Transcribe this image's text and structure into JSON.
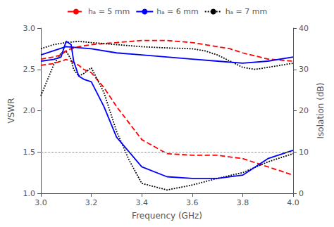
{
  "chart_data": {
    "type": "line",
    "xlabel": "Frequency (GHz)",
    "ylabel": "VSWR",
    "y2label": "Isolation (dB)",
    "xlim": [
      3.0,
      4.0
    ],
    "xticks": [
      {
        "value": 3.0,
        "label": "3.0"
      },
      3.2,
      3.4,
      3.6,
      3.8,
      {
        "value": 4.0,
        "label": "4.0"
      }
    ],
    "ylim": [
      1.0,
      3.0
    ],
    "yticks": [
      {
        "value": 1.0,
        "label": "1.0"
      },
      1.5,
      {
        "value": 2.0,
        "label": "2.0"
      },
      2.5,
      {
        "value": 3.0,
        "label": "3.0"
      }
    ],
    "y2lim": [
      0,
      40
    ],
    "y2ticks": [
      0,
      10,
      20,
      30,
      40
    ],
    "grid": false,
    "legend": "top",
    "hline_y": 1.5,
    "series": [
      {
        "name": "hₐ = 5 mm",
        "color": "red",
        "line_style": "dashed",
        "x": [
          3.0,
          3.05,
          3.08,
          3.1,
          3.12,
          3.15,
          3.17,
          3.2,
          3.25,
          3.3,
          3.4,
          3.5,
          3.6,
          3.7,
          3.8,
          3.9,
          4.0
        ],
        "values": [
          2.55,
          2.57,
          2.6,
          2.62,
          2.6,
          2.55,
          2.5,
          2.46,
          2.28,
          2.05,
          1.65,
          1.48,
          1.46,
          1.46,
          1.42,
          1.32,
          1.22
        ]
      },
      {
        "name": "hₐ = 6 mm",
        "color": "blue",
        "line_style": "solid",
        "x": [
          3.0,
          3.05,
          3.08,
          3.1,
          3.12,
          3.13,
          3.15,
          3.17,
          3.2,
          3.25,
          3.3,
          3.4,
          3.5,
          3.6,
          3.65,
          3.7,
          3.8,
          3.9,
          4.0
        ],
        "values": [
          2.6,
          2.62,
          2.65,
          2.84,
          2.8,
          2.6,
          2.42,
          2.38,
          2.35,
          2.05,
          1.68,
          1.32,
          1.2,
          1.18,
          1.18,
          1.18,
          1.22,
          1.42,
          1.52
        ]
      },
      {
        "name": "hₐ = 7 mm",
        "color": "black",
        "line_style": "dotted",
        "x": [
          3.0,
          3.05,
          3.08,
          3.1,
          3.12,
          3.13,
          3.15,
          3.17,
          3.2,
          3.25,
          3.3,
          3.35,
          3.4,
          3.5,
          3.6,
          3.7,
          3.8,
          3.9,
          4.0
        ],
        "values": [
          2.18,
          2.55,
          2.7,
          2.72,
          2.62,
          2.5,
          2.42,
          2.45,
          2.52,
          2.22,
          1.75,
          1.4,
          1.12,
          1.04,
          1.1,
          1.18,
          1.25,
          1.38,
          1.48
        ]
      },
      {
        "axis": "y2",
        "color": "red",
        "line_style": "dashed",
        "x": [
          3.0,
          3.05,
          3.08,
          3.1,
          3.12,
          3.15,
          3.2,
          3.3,
          3.4,
          3.5,
          3.6,
          3.7,
          3.75,
          3.8,
          3.9,
          4.0
        ],
        "values": [
          32.5,
          33.0,
          33.5,
          34.5,
          35.0,
          35.5,
          36.0,
          36.5,
          37.0,
          37.0,
          36.5,
          35.5,
          35.0,
          34.0,
          32.5,
          32.0
        ]
      },
      {
        "axis": "y2",
        "color": "blue",
        "line_style": "solid",
        "x": [
          3.0,
          3.1,
          3.2,
          3.3,
          3.4,
          3.5,
          3.6,
          3.7,
          3.8,
          3.9,
          4.0
        ],
        "values": [
          33.5,
          35.5,
          35.0,
          34.0,
          33.5,
          33.0,
          32.5,
          32.0,
          31.5,
          32.0,
          33.0
        ]
      },
      {
        "axis": "y2",
        "color": "black",
        "line_style": "dotted",
        "x": [
          3.0,
          3.05,
          3.1,
          3.15,
          3.2,
          3.3,
          3.4,
          3.5,
          3.6,
          3.65,
          3.7,
          3.75,
          3.8,
          3.85,
          3.9,
          4.0
        ],
        "values": [
          35.0,
          36.0,
          36.5,
          36.8,
          36.5,
          36.0,
          35.5,
          35.2,
          35.0,
          34.5,
          33.5,
          32.0,
          30.5,
          30.0,
          30.5,
          31.5
        ]
      }
    ]
  }
}
